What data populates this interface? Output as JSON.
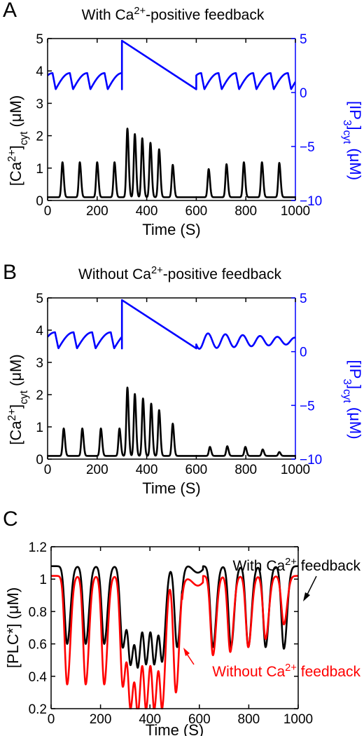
{
  "colors": {
    "ca": "#000000",
    "ip3": "#0000ff",
    "without": "#ff0000"
  },
  "chart_data": [
    {
      "panel": "A",
      "type": "line",
      "title": "With Ca2+-positive feedback",
      "xlabel": "Time (S)",
      "ylabel_left": "[Ca2+]cyt (μM)",
      "ylabel_right": "[IP3]cyt (μM)",
      "xlim": [
        0,
        1000
      ],
      "ylim_left": [
        0,
        5
      ],
      "ylim_right": [
        -10,
        5
      ],
      "xticks": [
        0,
        200,
        400,
        600,
        800,
        1000
      ],
      "yticks_left": [
        0,
        1,
        2,
        3,
        4,
        5
      ],
      "yticks_right": [
        -10,
        -5,
        0,
        5
      ],
      "series": [
        {
          "axis": "left",
          "color": "#000000",
          "spikes": {
            "baseline": 0.1,
            "peaks": [
              [
                60,
                1.18
              ],
              [
                130,
                1.18
              ],
              [
                200,
                1.18
              ],
              [
                270,
                1.18
              ],
              [
                322,
                2.22
              ],
              [
                352,
                2.05
              ],
              [
                382,
                1.92
              ],
              [
                415,
                1.78
              ],
              [
                450,
                1.58
              ],
              [
                505,
                1.1
              ],
              [
                650,
                0.97
              ],
              [
                722,
                1.12
              ],
              [
                792,
                1.18
              ],
              [
                865,
                1.18
              ],
              [
                935,
                1.16
              ]
            ]
          }
        },
        {
          "axis": "right",
          "color": "#0000ff",
          "segments": [
            {
              "x": [
                0,
                300
              ],
              "type": "oscillation",
              "period": 70,
              "phase": 20,
              "low": 0.3,
              "high": 1.8
            },
            {
              "x": [
                300,
                300
              ],
              "type": "jump",
              "from": 0.3,
              "to": 4.8
            },
            {
              "x": [
                300,
                600
              ],
              "type": "ramp",
              "from": 4.8,
              "to": 0.3
            },
            {
              "x": [
                600,
                1000
              ],
              "type": "oscillation",
              "period": 70,
              "phase": 620,
              "low": 0.3,
              "high": 1.8
            }
          ]
        }
      ]
    },
    {
      "panel": "B",
      "type": "line",
      "title": "Without Ca2+-positive feedback",
      "xlabel": "Time (S)",
      "ylabel_left": "[Ca2+]cyt (μM)",
      "ylabel_right": "[IP3]cyt (μM)",
      "xlim": [
        0,
        1000
      ],
      "ylim_left": [
        0,
        5
      ],
      "ylim_right": [
        -10,
        5
      ],
      "xticks": [
        0,
        200,
        400,
        600,
        800,
        1000
      ],
      "yticks_left": [
        0,
        1,
        2,
        3,
        4,
        5
      ],
      "yticks_right": [
        -10,
        -5,
        0,
        5
      ],
      "series": [
        {
          "axis": "left",
          "color": "#000000",
          "spikes": {
            "baseline": 0.1,
            "peaks": [
              [
                65,
                0.95
              ],
              [
                140,
                0.95
              ],
              [
                215,
                0.95
              ],
              [
                290,
                0.95
              ],
              [
                322,
                2.22
              ],
              [
                352,
                2.02
              ],
              [
                385,
                1.88
              ],
              [
                418,
                1.72
              ],
              [
                450,
                1.52
              ],
              [
                505,
                1.1
              ],
              [
                655,
                0.38
              ],
              [
                725,
                0.4
              ],
              [
                798,
                0.38
              ],
              [
                868,
                0.3
              ],
              [
                935,
                0.22
              ]
            ]
          }
        },
        {
          "axis": "right",
          "color": "#0000ff",
          "segments": [
            {
              "x": [
                0,
                300
              ],
              "type": "oscillation",
              "period": 75,
              "phase": 30,
              "low": 0.3,
              "high": 1.8
            },
            {
              "x": [
                300,
                300
              ],
              "type": "jump",
              "from": 0.3,
              "to": 4.8
            },
            {
              "x": [
                300,
                600
              ],
              "type": "ramp",
              "from": 4.8,
              "to": 0.3
            },
            {
              "x": [
                600,
                1000
              ],
              "type": "damped",
              "period": 70,
              "phase": 630,
              "center": 1.0,
              "amp0": 0.75,
              "amp1": 0.3
            }
          ]
        }
      ]
    },
    {
      "panel": "C",
      "type": "line",
      "title": "",
      "xlabel": "Time (S)",
      "ylabel": "[PLC*] (μM)",
      "xlim": [
        0,
        1000
      ],
      "ylim": [
        0.2,
        1.2
      ],
      "xticks": [
        0,
        200,
        400,
        600,
        800,
        1000
      ],
      "yticks": [
        0.2,
        0.4,
        0.6,
        0.8,
        1,
        1.2
      ],
      "annotations": {
        "with": "With Ca2+ feedback",
        "without": "Without Ca2+ feedback"
      },
      "series": [
        {
          "label": "With Ca2+ feedback",
          "color": "#000000",
          "dips": {
            "baseline": 1.08,
            "points": [
              [
                65,
                0.6
              ],
              [
                140,
                0.6
              ],
              [
                215,
                0.6
              ],
              [
                290,
                0.58
              ],
              [
                322,
                0.5
              ],
              [
                352,
                0.5
              ],
              [
                385,
                0.5
              ],
              [
                418,
                0.5
              ],
              [
                450,
                0.52
              ],
              [
                510,
                0.58
              ],
              [
                655,
                0.58
              ],
              [
                728,
                0.58
              ],
              [
                798,
                0.58
              ],
              [
                868,
                0.58
              ],
              [
                942,
                0.57
              ]
            ],
            "plateau": [
              [
                540,
                1.06
              ],
              [
                600,
                1.06
              ]
            ]
          }
        },
        {
          "label": "Without Ca2+ feedback",
          "color": "#ff0000",
          "dips": {
            "baseline": 1.02,
            "points": [
              [
                65,
                0.35
              ],
              [
                140,
                0.35
              ],
              [
                215,
                0.35
              ],
              [
                290,
                0.34
              ],
              [
                322,
                0.24
              ],
              [
                352,
                0.23
              ],
              [
                385,
                0.23
              ],
              [
                418,
                0.23
              ],
              [
                450,
                0.24
              ],
              [
                505,
                0.3
              ],
              [
                655,
                0.53
              ],
              [
                725,
                0.55
              ],
              [
                798,
                0.58
              ],
              [
                868,
                0.63
              ],
              [
                942,
                0.72
              ]
            ],
            "plateau": [
              [
                540,
                0.98
              ],
              [
                600,
                0.98
              ]
            ]
          }
        }
      ]
    }
  ]
}
